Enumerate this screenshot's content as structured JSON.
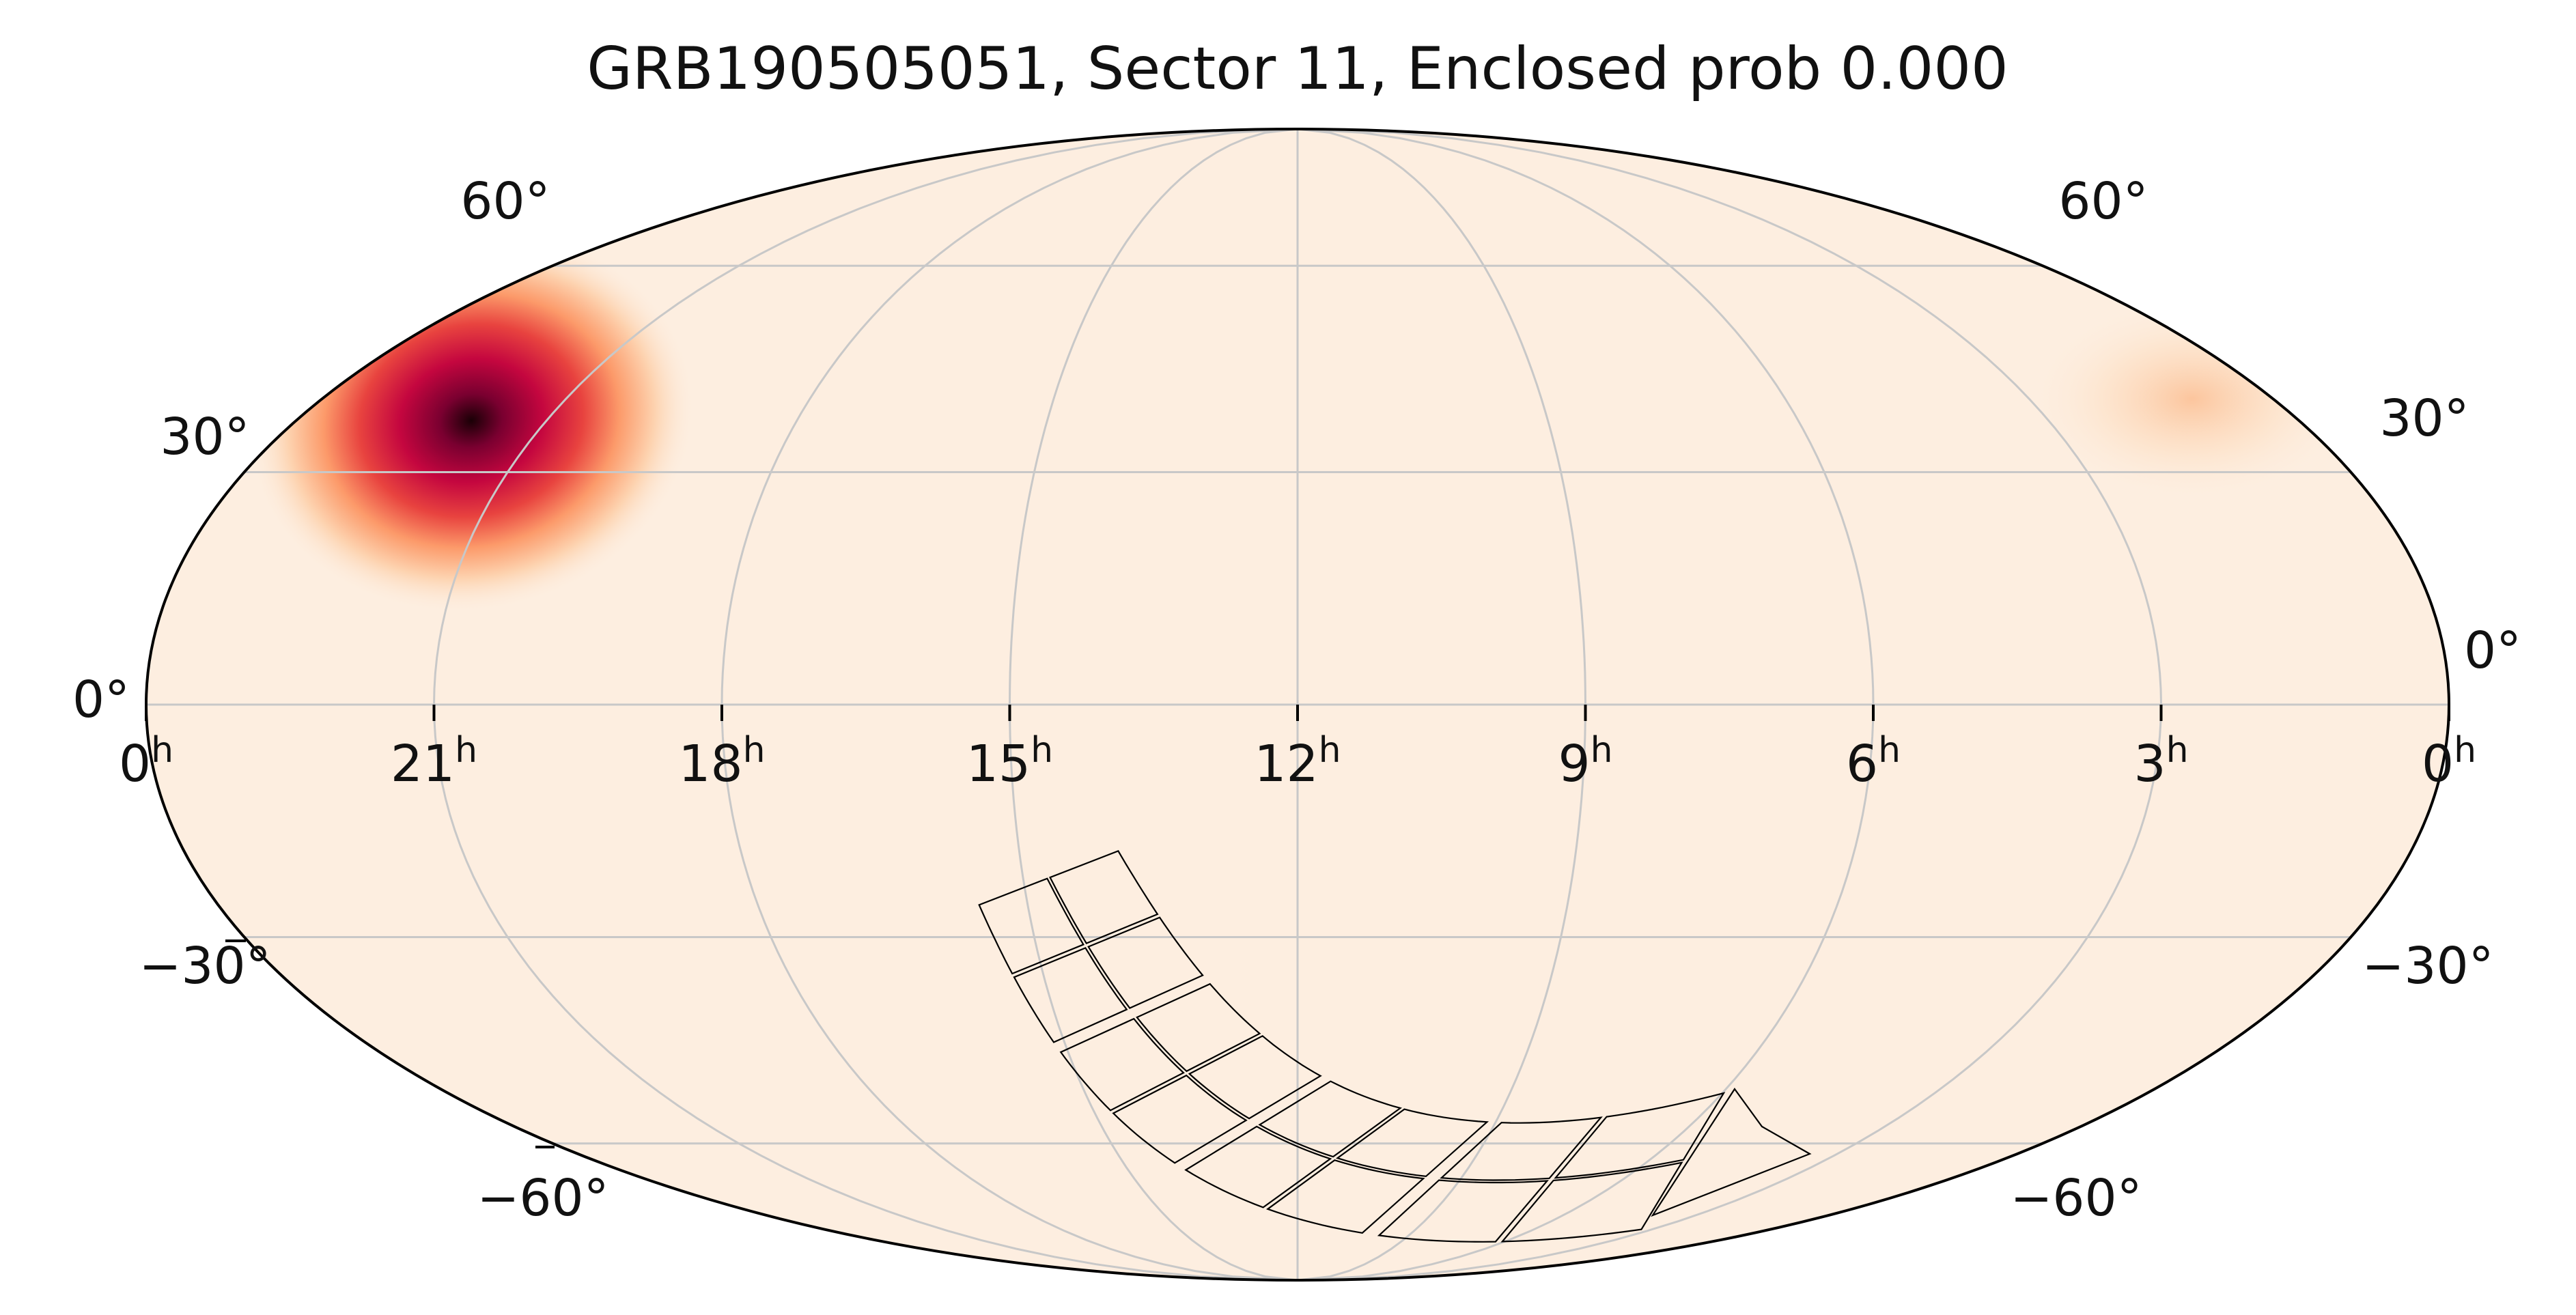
{
  "title": "GRB190505051, Sector 11, Enclosed prob 0.000",
  "projection": "mollweide",
  "coordinate_frame": "equatorial",
  "ra_ticks": [
    {
      "hours": 24,
      "label": "0",
      "sup": "h",
      "side": "left"
    },
    {
      "hours": 21,
      "label": "21",
      "sup": "h"
    },
    {
      "hours": 18,
      "label": "18",
      "sup": "h"
    },
    {
      "hours": 15,
      "label": "15",
      "sup": "h"
    },
    {
      "hours": 12,
      "label": "12",
      "sup": "h"
    },
    {
      "hours": 9,
      "label": "9",
      "sup": "h"
    },
    {
      "hours": 6,
      "label": "6",
      "sup": "h"
    },
    {
      "hours": 3,
      "label": "3",
      "sup": "h"
    },
    {
      "hours": 0,
      "label": "0",
      "sup": "h",
      "side": "right"
    }
  ],
  "dec_ticks": [
    {
      "deg": 60,
      "left": "60°",
      "right": "60°"
    },
    {
      "deg": 30,
      "left": "30°",
      "right": "30°"
    },
    {
      "deg": 0,
      "left": "0°",
      "right": "0°"
    },
    {
      "deg": -30,
      "left": "−30°",
      "right": "−30°"
    },
    {
      "deg": -60,
      "left": "−60°",
      "right": "−60°"
    }
  ],
  "probability_map": {
    "colormap": [
      "#fdeee0",
      "#fde0c5",
      "#fc9a6a",
      "#e8433f",
      "#c4063f",
      "#7a0030",
      "#1a0006"
    ],
    "peak": {
      "ra_hours": 21.9,
      "dec_deg": 37
    },
    "diffuse_edge_glow": {
      "ra_hours": 1.0,
      "dec_deg": 40
    }
  },
  "sector_footprint": {
    "sector": 11,
    "cameras": 4,
    "ccds_per_camera": 4
  },
  "colors": {
    "background": "#fdeee0",
    "grid": "#c8c8c8",
    "outline": "#000000",
    "footprint": "#000000"
  }
}
